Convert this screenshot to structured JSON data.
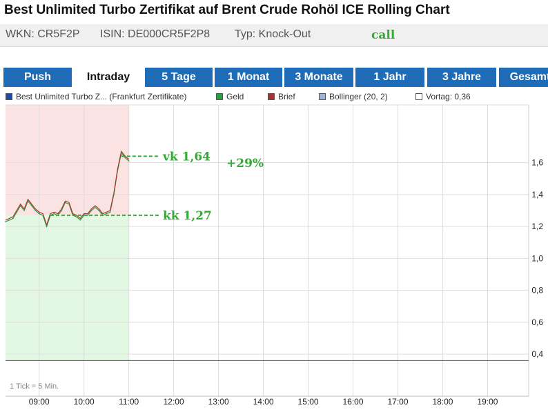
{
  "header": {
    "title": "Best Unlimited Turbo Zertifikat auf Brent Crude Rohöl ICE Rolling Chart",
    "wkn": "WKN: CR5F2P",
    "isin": "ISIN: DE000CR5F2P8",
    "typ": "Typ: Knock-Out",
    "call": "call"
  },
  "tabs": [
    {
      "label": "Push",
      "active": false
    },
    {
      "label": "Intraday",
      "active": true
    },
    {
      "label": "5 Tage",
      "active": false
    },
    {
      "label": "1 Monat",
      "active": false
    },
    {
      "label": "3 Monate",
      "active": false
    },
    {
      "label": "1 Jahr",
      "active": false
    },
    {
      "label": "3 Jahre",
      "active": false
    },
    {
      "label": "Gesamt",
      "active": false
    }
  ],
  "legend": [
    {
      "label": "Best Unlimited Turbo Z... (Frankfurt Zertifikate)",
      "color": "#1f4e9e"
    },
    {
      "label": "Geld",
      "color": "#2e9e3e"
    },
    {
      "label": "Brief",
      "color": "#a83232"
    },
    {
      "label": "Bollinger (20, 2)",
      "color": "#9fb4d9"
    },
    {
      "label": "Vortag: 0,36",
      "color": "#ffffff"
    }
  ],
  "annotations": {
    "vk": "vk 1,64",
    "kk": "kk 1,27",
    "gain": "+29%"
  },
  "chart_note": "1 Tick = 5 Min.",
  "chart_data": {
    "type": "line",
    "x_tick_labels": [
      "09:00",
      "10:00",
      "11:00",
      "12:00",
      "13:00",
      "14:00",
      "15:00",
      "16:00",
      "17:00",
      "18:00",
      "19:00"
    ],
    "y_tick_labels": [
      "0,4",
      "0,6",
      "0,8",
      "1,0",
      "1,2",
      "1,4",
      "1,6"
    ],
    "y_ticks": [
      0.4,
      0.6,
      0.8,
      1.0,
      1.2,
      1.4,
      1.6
    ],
    "ylim": [
      0.31,
      1.81
    ],
    "x_range": [
      "08:15",
      "19:55"
    ],
    "previous_close": 0.36,
    "grid": true,
    "y_axis_side": "right",
    "colors": {
      "price": "#1f4e9e",
      "bid": "#2e9e3e",
      "ask": "#a83232",
      "bollinger": "#9fb4d9",
      "region_before": "#fbe3e3",
      "region_after": "#e3f8e3",
      "annotation": "#33aa33"
    },
    "series": [
      {
        "name": "Geld",
        "x": [
          "08:15",
          "08:20",
          "08:25",
          "08:30",
          "08:35",
          "08:40",
          "08:45",
          "08:50",
          "08:55",
          "09:00",
          "09:05",
          "09:10",
          "09:15",
          "09:20",
          "09:25",
          "09:30",
          "09:35",
          "09:40",
          "09:45",
          "09:50",
          "09:55",
          "10:00",
          "10:05",
          "10:10",
          "10:15",
          "10:20",
          "10:25",
          "10:30",
          "10:35",
          "10:40",
          "10:45",
          "10:50",
          "10:55",
          "11:00"
        ],
        "values": [
          1.23,
          1.24,
          1.25,
          1.29,
          1.33,
          1.3,
          1.36,
          1.33,
          1.3,
          1.28,
          1.27,
          1.2,
          1.27,
          1.28,
          1.27,
          1.3,
          1.35,
          1.34,
          1.27,
          1.26,
          1.24,
          1.27,
          1.27,
          1.3,
          1.32,
          1.3,
          1.27,
          1.28,
          1.29,
          1.4,
          1.55,
          1.66,
          1.63,
          1.61
        ]
      },
      {
        "name": "Brief",
        "x": [
          "08:15",
          "08:20",
          "08:25",
          "08:30",
          "08:35",
          "08:40",
          "08:45",
          "08:50",
          "08:55",
          "09:00",
          "09:05",
          "09:10",
          "09:15",
          "09:20",
          "09:25",
          "09:30",
          "09:35",
          "09:40",
          "09:45",
          "09:50",
          "09:55",
          "10:00",
          "10:05",
          "10:10",
          "10:15",
          "10:20",
          "10:25",
          "10:30",
          "10:35",
          "10:40",
          "10:45",
          "10:50",
          "10:55",
          "11:00"
        ],
        "values": [
          1.24,
          1.25,
          1.26,
          1.3,
          1.34,
          1.31,
          1.37,
          1.34,
          1.31,
          1.29,
          1.28,
          1.21,
          1.28,
          1.29,
          1.28,
          1.31,
          1.36,
          1.35,
          1.28,
          1.27,
          1.25,
          1.28,
          1.28,
          1.31,
          1.33,
          1.31,
          1.28,
          1.29,
          1.3,
          1.41,
          1.56,
          1.67,
          1.64,
          1.62
        ]
      }
    ],
    "entry_marker": {
      "time": "09:15",
      "value": 1.27
    },
    "exit_marker": {
      "time": "10:50",
      "value": 1.64
    }
  }
}
